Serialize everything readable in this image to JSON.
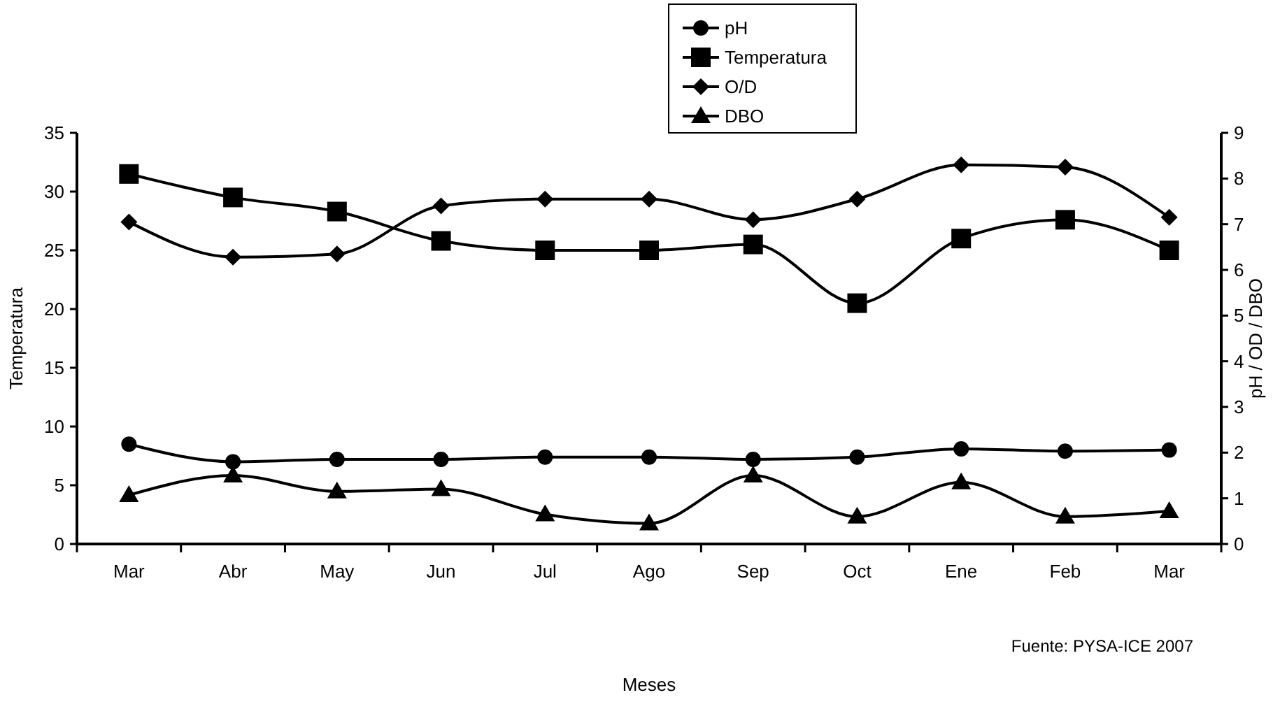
{
  "chart_data": {
    "type": "line",
    "categories": [
      "Mar",
      "Abr",
      "May",
      "Jun",
      "Jul",
      "Ago",
      "Sep",
      "Oct",
      "Ene",
      "Feb",
      "Mar"
    ],
    "ylabel": "Temperatura",
    "y2label": "pH / OD / DBO",
    "ylim": [
      0,
      35
    ],
    "yticks": [
      0,
      5,
      10,
      15,
      20,
      25,
      30,
      35
    ],
    "y2lim": [
      0,
      9
    ],
    "y2ticks": [
      0,
      1,
      2,
      3,
      4,
      5,
      6,
      7,
      8,
      9
    ],
    "legend": "top",
    "grid": false,
    "line_style": "solid",
    "annotations": [
      "Fuente: PYSA-ICE 2007",
      "Meses"
    ],
    "series": [
      {
        "name": "pH",
        "color": "#000000",
        "marker": "circle",
        "values": [
          8.5,
          7,
          7.2,
          7.2,
          7.4,
          7.4,
          7.2,
          7.4,
          8.1,
          7.9,
          8
        ]
      },
      {
        "name": "Temperatura",
        "color": "#000000",
        "marker": "square",
        "values": [
          31.5,
          29.5,
          28.3,
          25.8,
          25,
          25,
          25.5,
          20.5,
          26,
          27.6,
          25
        ]
      },
      {
        "name": "O/D",
        "color": "#000000",
        "marker": "diamond",
        "axis": "y2",
        "values": [
          7.05,
          6.28,
          6.35,
          7.4,
          7.55,
          7.55,
          7.1,
          7.55,
          8.3,
          8.25,
          7.15
        ]
      },
      {
        "name": "DBO",
        "color": "#000000",
        "marker": "triangle",
        "axis": "y2",
        "values": [
          1.07,
          1.5,
          1.15,
          1.2,
          0.65,
          0.45,
          1.5,
          0.6,
          1.35,
          0.6,
          0.72
        ]
      }
    ]
  }
}
